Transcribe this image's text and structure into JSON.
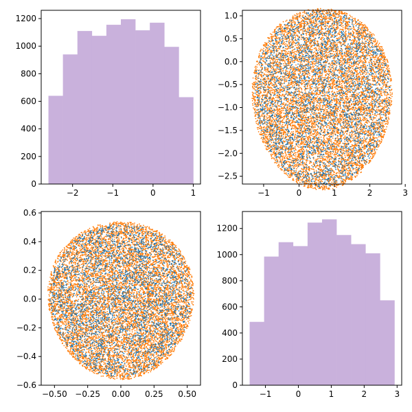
{
  "colors": {
    "hist_fill": "#c9b1dc",
    "scatter_background": "#ff7f0e",
    "scatter_highlight": "#1f77b4",
    "axes": "#000000"
  },
  "chart_data": [
    {
      "type": "histogram",
      "title": "",
      "xlabel": "",
      "ylabel": "",
      "bin_edges": [
        -2.6,
        -2.24,
        -1.88,
        -1.52,
        -1.16,
        -0.8,
        -0.44,
        -0.08,
        0.28,
        0.64,
        1.0
      ],
      "counts": [
        640,
        940,
        1110,
        1075,
        1155,
        1195,
        1115,
        1170,
        995,
        630
      ],
      "xlim": [
        -2.78,
        1.18
      ],
      "ylim": [
        0,
        1260
      ],
      "xticks": [
        -2,
        -1,
        0,
        1
      ],
      "xtick_labels": [
        "−2",
        "−1",
        "0",
        "1"
      ],
      "yticks": [
        0,
        200,
        400,
        600,
        800,
        1000,
        1200
      ],
      "ytick_labels": [
        "0",
        "200",
        "400",
        "600",
        "800",
        "1000",
        "1200"
      ],
      "grid": false,
      "legend": "none"
    },
    {
      "type": "scatter",
      "title": "",
      "xlabel": "",
      "ylabel": "",
      "shape": "disk",
      "center": [
        0.65,
        -0.78
      ],
      "radius": 1.98,
      "series": [
        {
          "color_key": "scatter_background",
          "approx_points": 9000
        },
        {
          "color_key": "scatter_highlight",
          "approx_points": 3000,
          "concentration": "interior"
        }
      ],
      "xlim": [
        -1.6,
        2.9
      ],
      "ylim": [
        -2.67,
        1.12
      ],
      "xticks": [
        -1,
        0,
        1,
        2,
        3
      ],
      "xtick_labels": [
        "−1",
        "0",
        "1",
        "2",
        "3"
      ],
      "yticks": [
        -2.5,
        -2.0,
        -1.5,
        -1.0,
        -0.5,
        0.0,
        0.5,
        1.0
      ],
      "ytick_labels": [
        "−2.5",
        "−2.0",
        "−1.5",
        "−1.0",
        "−0.5",
        "0.0",
        "0.5",
        "1.0"
      ],
      "grid": false,
      "legend": "none"
    },
    {
      "type": "scatter",
      "title": "",
      "xlabel": "",
      "ylabel": "",
      "shape": "disk",
      "center": [
        0.0,
        0.0
      ],
      "radius": 0.55,
      "series": [
        {
          "color_key": "scatter_background",
          "approx_points": 9000
        },
        {
          "color_key": "scatter_highlight",
          "approx_points": 3000,
          "concentration": "interior"
        }
      ],
      "xlim": [
        -0.6,
        0.6
      ],
      "ylim": [
        -0.6,
        0.61
      ],
      "xticks": [
        -0.5,
        -0.25,
        0.0,
        0.25,
        0.5
      ],
      "xtick_labels": [
        "−0.50",
        "−0.25",
        "0.00",
        "0.25",
        "0.50"
      ],
      "yticks": [
        -0.6,
        -0.4,
        -0.2,
        0.0,
        0.2,
        0.4,
        0.6
      ],
      "ytick_labels": [
        "−0.6",
        "−0.4",
        "−0.2",
        "0.0",
        "0.2",
        "0.4",
        "0.6"
      ],
      "grid": false,
      "legend": "none"
    },
    {
      "type": "histogram",
      "title": "",
      "xlabel": "",
      "ylabel": "",
      "bin_edges": [
        -1.48,
        -1.04,
        -0.6,
        -0.16,
        0.28,
        0.72,
        1.16,
        1.6,
        2.04,
        2.48,
        2.92
      ],
      "counts": [
        485,
        985,
        1095,
        1065,
        1245,
        1270,
        1150,
        1080,
        1010,
        650
      ],
      "xlim": [
        -1.7,
        3.14
      ],
      "ylim": [
        0,
        1330
      ],
      "xticks": [
        -1,
        0,
        1,
        2,
        3
      ],
      "xtick_labels": [
        "−1",
        "0",
        "1",
        "2",
        "3"
      ],
      "yticks": [
        0,
        200,
        400,
        600,
        800,
        1000,
        1200
      ],
      "ytick_labels": [
        "0",
        "200",
        "400",
        "600",
        "800",
        "1000",
        "1200"
      ],
      "grid": false,
      "legend": "none"
    }
  ]
}
